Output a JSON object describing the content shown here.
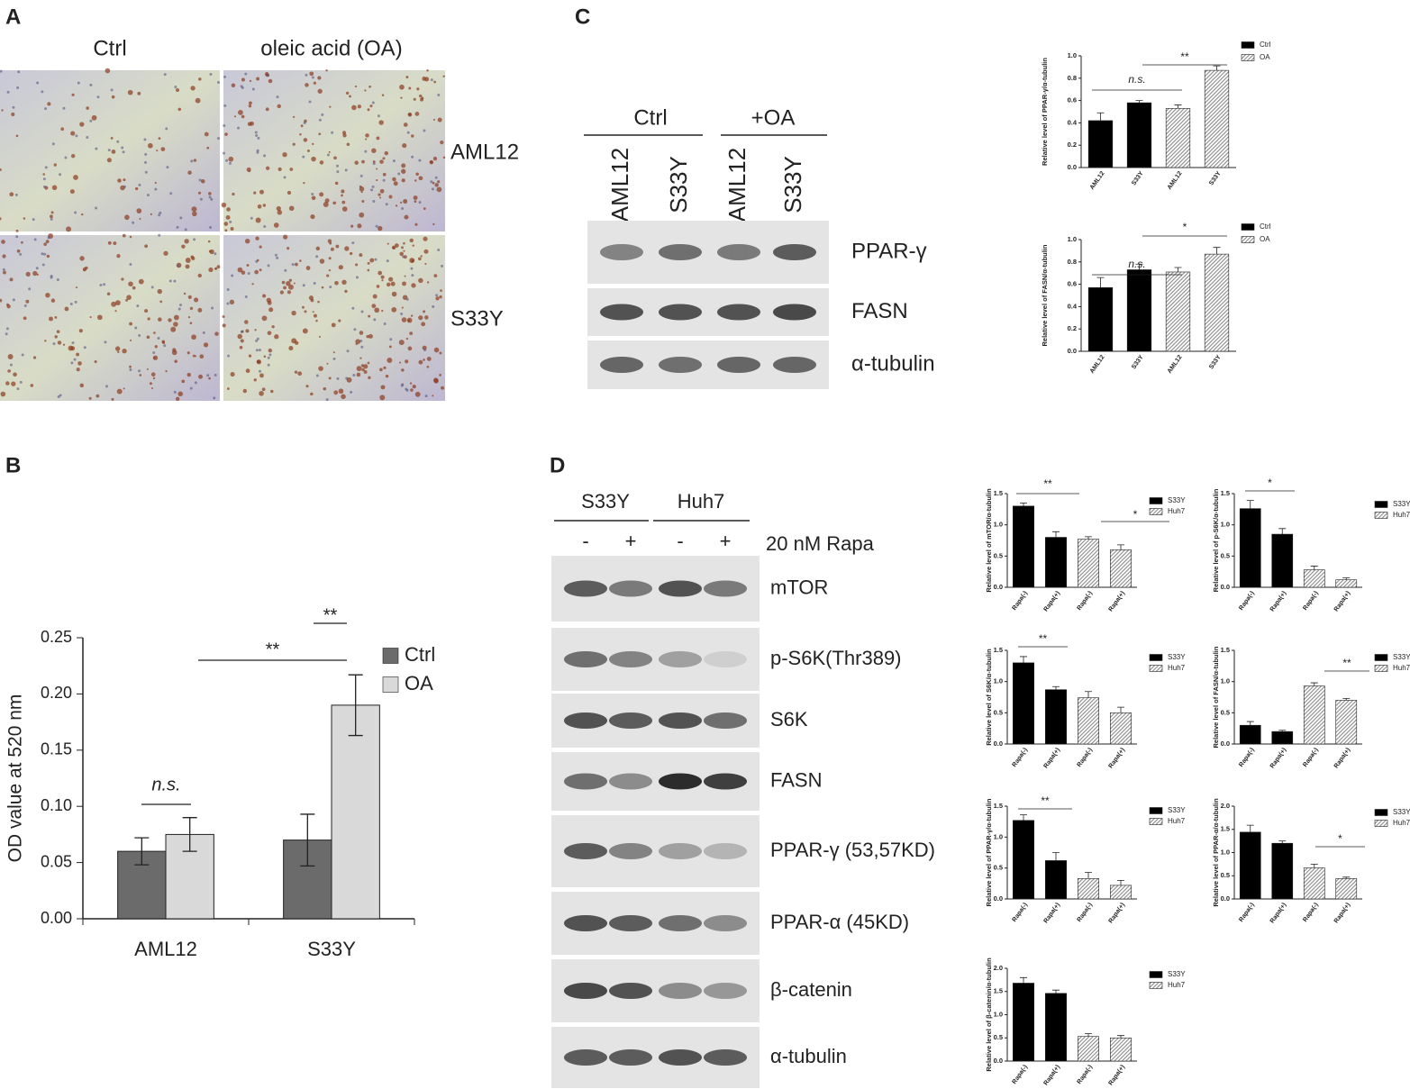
{
  "panel_labels": [
    "A",
    "B",
    "C",
    "D"
  ],
  "panel_a": {
    "columns": [
      "Ctrl",
      "oleic acid (OA)"
    ],
    "rows": [
      "AML12",
      "S33Y"
    ]
  },
  "panel_c_blot": {
    "groups": [
      "Ctrl",
      "+OA"
    ],
    "lanes": [
      "AML12",
      "S33Y",
      "AML12",
      "S33Y"
    ],
    "bands": [
      "PPAR-γ",
      "FASN",
      "α-tubulin"
    ]
  },
  "panel_d_blot": {
    "groups": [
      "S33Y",
      "Huh7"
    ],
    "treatment_label": "20 nM Rapa",
    "lanes": [
      "-",
      "+",
      "-",
      "+"
    ],
    "bands": [
      "mTOR",
      "p-S6K(Thr389)",
      "S6K",
      "FASN",
      "PPAR-γ (53,57KD)",
      "PPAR-α (45KD)",
      "β-catenin",
      "α-tubulin"
    ]
  },
  "chart_data": [
    {
      "type": "bar",
      "ylabel": "OD value at 520 nm",
      "categories": [
        "AML12",
        "S33Y"
      ],
      "series": [
        {
          "name": "Ctrl",
          "color": "#6b6b6b",
          "values": [
            0.06,
            0.07
          ],
          "errors": [
            0.012,
            0.023
          ]
        },
        {
          "name": "OA",
          "color": "#d9d9d9",
          "values": [
            0.075,
            0.19
          ],
          "errors": [
            0.015,
            0.027
          ]
        }
      ],
      "ylim": [
        0,
        0.25
      ],
      "yticks": [
        {
          "value": 0,
          "label": "0.00"
        },
        0.05,
        {
          "value": 0.1,
          "label": "0.10"
        },
        0.15,
        {
          "value": 0.2,
          "label": "0.20"
        },
        0.25
      ],
      "annotations": [
        "n.s.",
        "**",
        "**"
      ]
    },
    {
      "type": "bar",
      "ylabel": "Relative level of PPAR-γ/α-tubulin",
      "categories": [
        "AML12",
        "S33Y",
        "AML12",
        "S33Y"
      ],
      "series": [
        {
          "name": "Ctrl",
          "color": "#000000",
          "values": [
            0.42,
            0.58,
            null,
            null
          ],
          "errors": [
            0.07,
            0.02,
            null,
            null
          ]
        },
        {
          "name": "OA",
          "color": "#8a8a8a",
          "hatch": true,
          "values": [
            null,
            null,
            0.53,
            0.87
          ],
          "errors": [
            null,
            null,
            0.03,
            0.04
          ]
        }
      ],
      "ylim": [
        0,
        1
      ],
      "yticks": [
        {
          "value": 0,
          "label": "0.0"
        },
        0.2,
        0.4,
        0.6,
        0.8,
        {
          "value": 1,
          "label": "1.0"
        }
      ],
      "annotations": [
        "n.s.",
        "**"
      ]
    },
    {
      "type": "bar",
      "ylabel": "Relative level of FASN/α-tubulin",
      "categories": [
        "AML12",
        "S33Y",
        "AML12",
        "S33Y"
      ],
      "series": [
        {
          "name": "Ctrl",
          "color": "#000000",
          "values": [
            0.57,
            0.73,
            null,
            null
          ],
          "errors": [
            0.09,
            0.05,
            null,
            null
          ]
        },
        {
          "name": "OA",
          "color": "#8a8a8a",
          "hatch": true,
          "values": [
            null,
            null,
            0.71,
            0.87
          ],
          "errors": [
            null,
            null,
            0.04,
            0.06
          ]
        }
      ],
      "ylim": [
        0,
        1
      ],
      "yticks": [
        {
          "value": 0,
          "label": "0.0"
        },
        0.2,
        0.4,
        0.6,
        0.8,
        {
          "value": 1,
          "label": "1.0"
        }
      ],
      "annotations": [
        "n.s.",
        "*"
      ]
    },
    {
      "type": "bar",
      "ylabel": "Relative level of mTOR/α-tubulin",
      "categories": [
        "Rapa(-)",
        "Rapa(+)",
        "Rapa(-)",
        "Rapa(+)"
      ],
      "series": [
        {
          "name": "S33Y",
          "color": "#000000",
          "values": [
            1.3,
            0.8,
            null,
            null
          ],
          "errors": [
            0.05,
            0.09,
            null,
            null
          ]
        },
        {
          "name": "Huh7",
          "color": "#8a8a8a",
          "hatch": true,
          "values": [
            null,
            null,
            0.77,
            0.6
          ],
          "errors": [
            null,
            null,
            0.04,
            0.08
          ]
        }
      ],
      "ylim": [
        0,
        1.5
      ],
      "yticks": [
        {
          "value": 0,
          "label": "0.0"
        },
        0.5,
        {
          "value": 1,
          "label": "1.0"
        },
        1.5
      ],
      "annotations": [
        "**",
        "*"
      ]
    },
    {
      "type": "bar",
      "ylabel": "Relative level of p-S6K/α-tubulin",
      "categories": [
        "Rapa(-)",
        "Rapa(+)",
        "Rapa(-)",
        "Rapa(+)"
      ],
      "series": [
        {
          "name": "S33Y",
          "color": "#000000",
          "values": [
            1.26,
            0.85,
            null,
            null
          ],
          "errors": [
            0.13,
            0.09,
            null,
            null
          ]
        },
        {
          "name": "Huh7",
          "color": "#8a8a8a",
          "hatch": true,
          "values": [
            null,
            null,
            0.28,
            0.12
          ],
          "errors": [
            null,
            null,
            0.06,
            0.03
          ]
        }
      ],
      "ylim": [
        0,
        1.5
      ],
      "yticks": [
        {
          "value": 0,
          "label": "0.0"
        },
        0.5,
        {
          "value": 1,
          "label": "1.0"
        },
        1.5
      ],
      "annotations": [
        "*"
      ]
    },
    {
      "type": "bar",
      "ylabel": "Relative level of S6K/α-tubulin",
      "categories": [
        "Rapa(-)",
        "Rapa(+)",
        "Rapa(-)",
        "Rapa(+)"
      ],
      "series": [
        {
          "name": "S33Y",
          "color": "#000000",
          "values": [
            1.3,
            0.87,
            null,
            null
          ],
          "errors": [
            0.1,
            0.05,
            null,
            null
          ]
        },
        {
          "name": "Huh7",
          "color": "#8a8a8a",
          "hatch": true,
          "values": [
            null,
            null,
            0.74,
            0.5
          ],
          "errors": [
            null,
            null,
            0.1,
            0.09
          ]
        }
      ],
      "ylim": [
        0,
        1.5
      ],
      "yticks": [
        {
          "value": 0,
          "label": "0.0"
        },
        0.5,
        {
          "value": 1,
          "label": "1.0"
        },
        1.5
      ],
      "annotations": [
        "**"
      ]
    },
    {
      "type": "bar",
      "ylabel": "Relative level of FASN/α-tubulin",
      "categories": [
        "Rapa(-)",
        "Rapa(+)",
        "Rapa(-)",
        "Rapa(+)"
      ],
      "series": [
        {
          "name": "S33Y",
          "color": "#000000",
          "values": [
            0.3,
            0.2,
            null,
            null
          ],
          "errors": [
            0.06,
            0.02,
            null,
            null
          ]
        },
        {
          "name": "Huh7",
          "color": "#8a8a8a",
          "hatch": true,
          "values": [
            null,
            null,
            0.93,
            0.7
          ],
          "errors": [
            null,
            null,
            0.05,
            0.03
          ]
        }
      ],
      "ylim": [
        0,
        1.5
      ],
      "yticks": [
        {
          "value": 0,
          "label": "0.0"
        },
        0.5,
        {
          "value": 1,
          "label": "1.0"
        },
        1.5
      ],
      "annotations": [
        "**"
      ]
    },
    {
      "type": "bar",
      "ylabel": "Relative level of PPAR-γ/α-tubulin",
      "categories": [
        "Rapa(-)",
        "Rapa(+)",
        "Rapa(-)",
        "Rapa(+)"
      ],
      "series": [
        {
          "name": "S33Y",
          "color": "#000000",
          "values": [
            1.27,
            0.62,
            null,
            null
          ],
          "errors": [
            0.09,
            0.13,
            null,
            null
          ]
        },
        {
          "name": "Huh7",
          "color": "#8a8a8a",
          "hatch": true,
          "values": [
            null,
            null,
            0.33,
            0.22
          ],
          "errors": [
            null,
            null,
            0.1,
            0.08
          ]
        }
      ],
      "ylim": [
        0,
        1.5
      ],
      "yticks": [
        {
          "value": 0,
          "label": "0.0"
        },
        0.5,
        {
          "value": 1,
          "label": "1.0"
        },
        1.5
      ],
      "annotations": [
        "**"
      ]
    },
    {
      "type": "bar",
      "ylabel": "Relative level of PPAR-α/α-tubulin",
      "categories": [
        "Rapa(-)",
        "Rapa(+)",
        "Rapa(-)",
        "Rapa(+)"
      ],
      "series": [
        {
          "name": "S33Y",
          "color": "#000000",
          "values": [
            1.44,
            1.2,
            null,
            null
          ],
          "errors": [
            0.15,
            0.05,
            null,
            null
          ]
        },
        {
          "name": "Huh7",
          "color": "#8a8a8a",
          "hatch": true,
          "values": [
            null,
            null,
            0.67,
            0.44
          ],
          "errors": [
            null,
            null,
            0.08,
            0.03
          ]
        }
      ],
      "ylim": [
        0,
        2
      ],
      "yticks": [
        {
          "value": 0,
          "label": "0.0"
        },
        0.5,
        {
          "value": 1,
          "label": "1.0"
        },
        1.5,
        {
          "value": 2,
          "label": "2.0"
        }
      ],
      "annotations": [
        "*"
      ]
    },
    {
      "type": "bar",
      "ylabel": "Relative level of β-catenin/α-tubulin",
      "categories": [
        "Rapa(-)",
        "Rapa(+)",
        "Rapa(-)",
        "Rapa(+)"
      ],
      "series": [
        {
          "name": "S33Y",
          "color": "#000000",
          "values": [
            1.68,
            1.46,
            null,
            null
          ],
          "errors": [
            0.12,
            0.07,
            null,
            null
          ]
        },
        {
          "name": "Huh7",
          "color": "#8a8a8a",
          "hatch": true,
          "values": [
            null,
            null,
            0.53,
            0.5
          ],
          "errors": [
            null,
            null,
            0.06,
            0.05
          ]
        }
      ],
      "ylim": [
        0,
        2
      ],
      "yticks": [
        {
          "value": 0,
          "label": "0.0"
        },
        0.5,
        {
          "value": 1,
          "label": "1.0"
        },
        1.5,
        {
          "value": 2,
          "label": "2.0"
        }
      ],
      "annotations": []
    }
  ]
}
